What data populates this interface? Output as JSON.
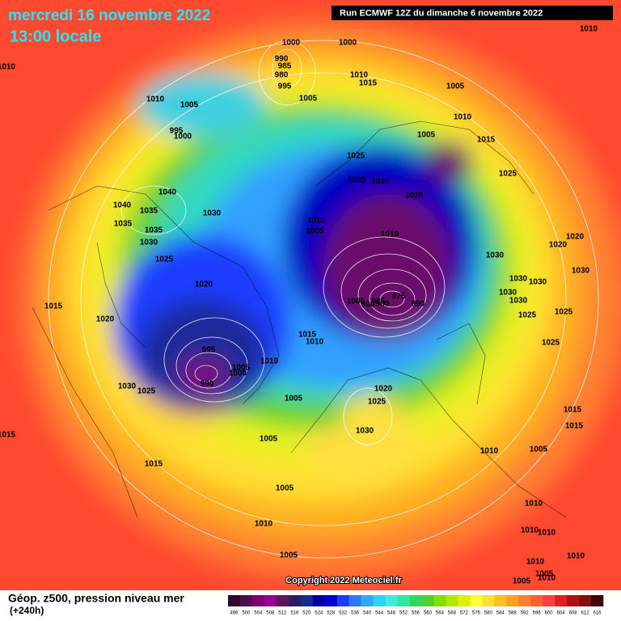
{
  "header": {
    "date": "mercredi 16 novembre 2022",
    "time": "13:00 locale",
    "run": "Run ECMWF 12Z du dimanche 6 novembre 2022"
  },
  "isobar_labels": [
    "1000",
    "1000",
    "1010",
    "1010",
    "990",
    "985",
    "980",
    "995",
    "1010",
    "1015",
    "1005",
    "1010",
    "1005",
    "1005",
    "1010",
    "995",
    "1000",
    "1005",
    "1015",
    "1025",
    "1025",
    "1030",
    "1030",
    "1020",
    "1040",
    "1040",
    "1035",
    "1030",
    "1035",
    "1010",
    "1005",
    "1010",
    "1035",
    "1030",
    "1020",
    "1020",
    "1030",
    "1025",
    "1030",
    "1020",
    "1030",
    "1030",
    "975",
    "990",
    "1005",
    "990",
    "985",
    "980",
    "1015",
    "1030",
    "1030",
    "1025",
    "1025",
    "1020",
    "1015",
    "1010",
    "995",
    "1025",
    "1010",
    "1005",
    "1000",
    "990",
    "1030",
    "1025",
    "1020",
    "1025",
    "1005",
    "1015",
    "1015",
    "1015",
    "1030",
    "1005",
    "1010",
    "1005",
    "1015",
    "1005",
    "1010",
    "1010",
    "1010",
    "1010",
    "1005",
    "1010",
    "1010",
    "1005",
    "1010",
    "1005"
  ],
  "footer": {
    "legend_title": "Géop. z500, pression niveau mer",
    "lead": "(+240h)",
    "copyright": "Copyright 2022 Meteociel.fr"
  },
  "colorbar": {
    "labels": [
      496,
      500,
      504,
      508,
      512,
      516,
      520,
      524,
      528,
      532,
      536,
      540,
      544,
      548,
      552,
      556,
      560,
      564,
      568,
      572,
      576,
      580,
      584,
      588,
      592,
      596,
      600,
      604,
      608,
      612,
      616
    ],
    "colors": [
      "#2e0a2e",
      "#4b0f4b",
      "#7a007a",
      "#980098",
      "#5a1a5a",
      "#2a1a6a",
      "#1a2a8a",
      "#0000a0",
      "#0000d0",
      "#1a3cff",
      "#2a7aff",
      "#30aaff",
      "#30d0ff",
      "#40e8e0",
      "#30e8a0",
      "#30d860",
      "#50d030",
      "#80e000",
      "#b0e800",
      "#e0f000",
      "#ffff30",
      "#ffe030",
      "#ffc020",
      "#ffa020",
      "#ff8030",
      "#ff6030",
      "#ff4040",
      "#e02020",
      "#b01010",
      "#801010",
      "#400808"
    ]
  }
}
